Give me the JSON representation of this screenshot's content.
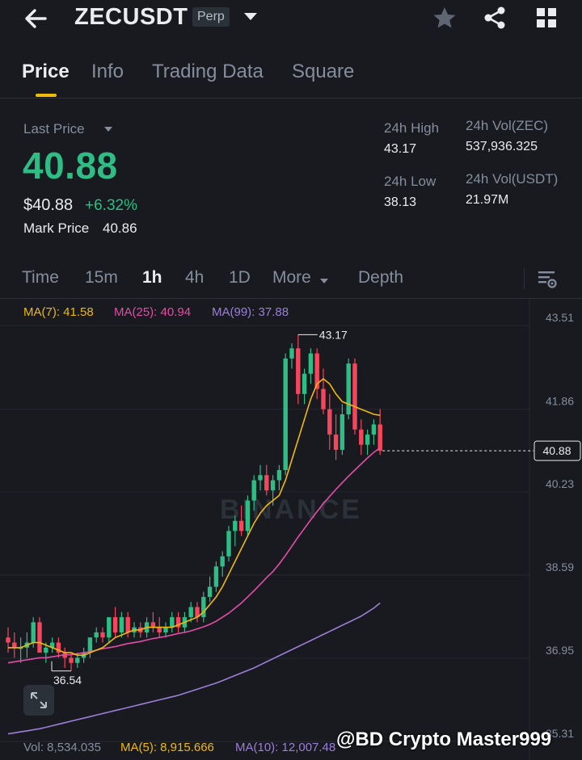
{
  "header": {
    "symbol": "ZECUSDT",
    "badge": "Perp",
    "icons": {
      "back": "arrow-left-icon",
      "caret": "caret-down-icon",
      "star": "star-icon",
      "share": "share-icon",
      "grid": "grid-icon"
    }
  },
  "tabs": [
    "Price",
    "Info",
    "Trading Data",
    "Square"
  ],
  "price": {
    "last_price_label": "Last Price",
    "last_price": "40.88",
    "usd_price": "$40.88",
    "change_pct": "+6.32%",
    "mark_price_label": "Mark Price",
    "mark_price": "40.86"
  },
  "stats": {
    "high_label": "24h High",
    "high": "43.17",
    "low_label": "24h Low",
    "low": "38.13",
    "vol_base_label": "24h Vol(ZEC)",
    "vol_base": "537,936.325",
    "vol_quote_label": "24h Vol(USDT)",
    "vol_quote": "21.97M"
  },
  "intervals": [
    "Time",
    "15m",
    "1h",
    "4h",
    "1D",
    "More",
    "Depth"
  ],
  "active_interval": "1h",
  "colors": {
    "up": "#2ebd85",
    "down": "#f6465d",
    "accent": "#f0b90b",
    "ma7": "#f0b90b",
    "ma25": "#e44ca8",
    "ma99": "#9b7fd8"
  },
  "ma_legend": {
    "ma7": "MA(7): 41.58",
    "ma25": "MA(25): 40.94",
    "ma99": "MA(99): 37.88"
  },
  "chart_data": {
    "type": "candlestick",
    "interval": "1h",
    "y_ticks": [
      "43.51",
      "41.86",
      "40.23",
      "38.59",
      "36.95",
      "35.31"
    ],
    "ylim": [
      35.31,
      43.51
    ],
    "current_price": "40.88",
    "high_annotation": "43.17",
    "low_annotation": "36.54",
    "watermark": "BINANCE",
    "candles": [
      [
        37.2,
        37.4,
        36.9,
        37.1
      ],
      [
        37.1,
        37.3,
        36.8,
        37.0
      ],
      [
        37.0,
        37.2,
        36.7,
        37.0
      ],
      [
        37.0,
        37.3,
        36.8,
        37.1
      ],
      [
        37.1,
        37.6,
        37.0,
        37.5
      ],
      [
        37.5,
        37.6,
        36.9,
        36.9
      ],
      [
        36.9,
        37.1,
        36.7,
        37.0
      ],
      [
        37.0,
        37.2,
        36.9,
        37.1
      ],
      [
        37.1,
        37.2,
        36.8,
        36.9
      ],
      [
        36.9,
        37.0,
        36.6,
        36.8
      ],
      [
        36.8,
        36.9,
        36.54,
        36.7
      ],
      [
        36.7,
        36.9,
        36.6,
        36.8
      ],
      [
        36.8,
        37.0,
        36.7,
        36.9
      ],
      [
        36.9,
        37.2,
        36.8,
        37.2
      ],
      [
        37.2,
        37.4,
        37.1,
        37.3
      ],
      [
        37.3,
        37.4,
        37.1,
        37.2
      ],
      [
        37.2,
        37.6,
        37.1,
        37.6
      ],
      [
        37.6,
        37.8,
        37.2,
        37.3
      ],
      [
        37.3,
        37.7,
        37.2,
        37.6
      ],
      [
        37.6,
        37.7,
        37.2,
        37.3
      ],
      [
        37.3,
        37.5,
        37.2,
        37.4
      ],
      [
        37.4,
        37.5,
        37.2,
        37.3
      ],
      [
        37.3,
        37.6,
        37.2,
        37.5
      ],
      [
        37.5,
        37.7,
        37.3,
        37.4
      ],
      [
        37.4,
        37.6,
        37.2,
        37.3
      ],
      [
        37.3,
        37.5,
        37.2,
        37.4
      ],
      [
        37.4,
        37.7,
        37.3,
        37.6
      ],
      [
        37.6,
        37.7,
        37.3,
        37.4
      ],
      [
        37.4,
        37.7,
        37.3,
        37.6
      ],
      [
        37.6,
        37.9,
        37.5,
        37.8
      ],
      [
        37.8,
        37.9,
        37.5,
        37.6
      ],
      [
        37.6,
        38.1,
        37.5,
        38.0
      ],
      [
        38.0,
        38.4,
        37.9,
        38.2
      ],
      [
        38.2,
        38.7,
        38.1,
        38.6
      ],
      [
        38.6,
        38.9,
        38.4,
        38.8
      ],
      [
        38.8,
        39.4,
        38.7,
        39.3
      ],
      [
        39.3,
        39.6,
        39.0,
        39.5
      ],
      [
        39.5,
        39.8,
        39.2,
        39.3
      ],
      [
        39.3,
        40.0,
        39.2,
        39.9
      ],
      [
        39.9,
        40.4,
        39.7,
        40.3
      ],
      [
        40.3,
        40.6,
        40.1,
        40.4
      ],
      [
        40.4,
        40.6,
        40.0,
        40.1
      ],
      [
        40.1,
        40.4,
        39.8,
        40.3
      ],
      [
        40.3,
        40.6,
        40.1,
        40.5
      ],
      [
        40.5,
        42.8,
        40.4,
        42.7
      ],
      [
        42.7,
        43.0,
        42.5,
        42.9
      ],
      [
        42.9,
        43.17,
        41.8,
        42.0
      ],
      [
        42.0,
        42.5,
        41.8,
        42.4
      ],
      [
        42.4,
        42.9,
        42.2,
        42.8
      ],
      [
        42.8,
        42.9,
        41.9,
        42.1
      ],
      [
        42.1,
        42.5,
        41.6,
        41.7
      ],
      [
        41.7,
        42.0,
        40.9,
        41.2
      ],
      [
        41.2,
        41.6,
        40.7,
        40.9
      ],
      [
        40.9,
        41.8,
        40.8,
        41.6
      ],
      [
        41.6,
        42.7,
        41.5,
        42.6
      ],
      [
        42.6,
        42.7,
        41.2,
        41.3
      ],
      [
        41.3,
        41.5,
        40.8,
        41.0
      ],
      [
        41.0,
        41.3,
        40.8,
        41.2
      ],
      [
        41.2,
        41.5,
        41.0,
        41.4
      ],
      [
        41.4,
        41.7,
        40.8,
        40.88
      ]
    ],
    "ma7": [
      37.0,
      37.0,
      37.0,
      37.05,
      37.1,
      37.1,
      37.05,
      37.0,
      36.95,
      36.9,
      36.9,
      36.85,
      36.85,
      36.9,
      36.95,
      37.0,
      37.1,
      37.2,
      37.25,
      37.3,
      37.35,
      37.35,
      37.4,
      37.4,
      37.4,
      37.4,
      37.4,
      37.45,
      37.5,
      37.55,
      37.6,
      37.7,
      37.85,
      38.0,
      38.2,
      38.45,
      38.7,
      38.95,
      39.2,
      39.45,
      39.65,
      39.8,
      39.9,
      40.0,
      40.3,
      40.7,
      41.1,
      41.5,
      41.9,
      42.2,
      42.3,
      42.2,
      42.0,
      41.85,
      41.8,
      41.75,
      41.7,
      41.65,
      41.6,
      41.58
    ],
    "ma25": [
      36.7,
      36.72,
      36.74,
      36.76,
      36.78,
      36.8,
      36.8,
      36.82,
      36.84,
      36.86,
      36.86,
      36.88,
      36.9,
      36.92,
      36.95,
      36.98,
      37.0,
      37.02,
      37.05,
      37.08,
      37.1,
      37.12,
      37.15,
      37.18,
      37.2,
      37.22,
      37.25,
      37.28,
      37.3,
      37.33,
      37.37,
      37.41,
      37.46,
      37.52,
      37.6,
      37.68,
      37.78,
      37.88,
      38.0,
      38.12,
      38.25,
      38.38,
      38.5,
      38.65,
      38.82,
      39.0,
      39.18,
      39.35,
      39.52,
      39.68,
      39.84,
      39.98,
      40.12,
      40.25,
      40.38,
      40.5,
      40.62,
      40.74,
      40.85,
      40.94
    ],
    "ma99": [
      35.3,
      35.32,
      35.34,
      35.36,
      35.38,
      35.4,
      35.43,
      35.46,
      35.49,
      35.52,
      35.55,
      35.58,
      35.61,
      35.64,
      35.67,
      35.7,
      35.73,
      35.76,
      35.79,
      35.82,
      35.85,
      35.88,
      35.91,
      35.94,
      35.97,
      36.0,
      36.03,
      36.06,
      36.1,
      36.14,
      36.18,
      36.22,
      36.26,
      36.3,
      36.35,
      36.4,
      36.45,
      36.5,
      36.55,
      36.6,
      36.66,
      36.72,
      36.78,
      36.84,
      36.9,
      36.96,
      37.02,
      37.08,
      37.14,
      37.2,
      37.26,
      37.32,
      37.38,
      37.44,
      37.5,
      37.56,
      37.62,
      37.7,
      37.78,
      37.88
    ]
  },
  "volume_bar": {
    "vol": "Vol: 8,534.035",
    "ma5": "MA(5): 8,915.666",
    "ma10": "MA(10): 12,007.48"
  },
  "watermark_handle": "@BD Crypto Master999"
}
